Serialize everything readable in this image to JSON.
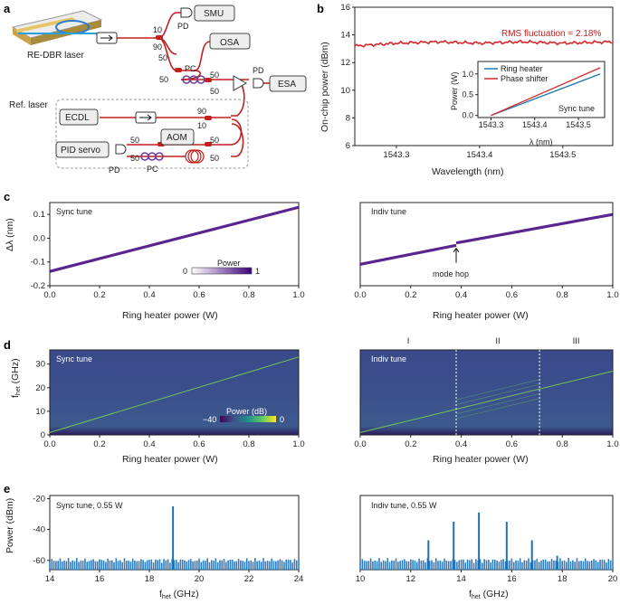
{
  "panel_labels": {
    "a": "a",
    "b": "b",
    "c": "c",
    "d": "d",
    "e": "e"
  },
  "schematic": {
    "laser": "RE-DBR laser",
    "smu": "SMU",
    "osa": "OSA",
    "esa": "ESA",
    "pd_top": "PD",
    "pd_right": "PD",
    "pd_bottom": "PD",
    "pc_mid": "PC",
    "pc_bottom": "PC",
    "ref_laser": "Ref. laser",
    "ecdl": "ECDL",
    "pid": "PID servo",
    "aom": "AOM",
    "c10a": "10",
    "c90a": "90",
    "c50a": "50",
    "c50b": "50",
    "c50c": "50",
    "c50d": "50",
    "c90b": "90",
    "c10b": "10",
    "c50e": "50",
    "c50f": "50",
    "c50g": "50",
    "c50h": "50"
  },
  "chart_data": [
    {
      "id": "b",
      "type": "line",
      "xlabel": "Wavelength (nm)",
      "ylabel": "On-chip power (dBm)",
      "xlim": [
        1543.25,
        1543.56
      ],
      "ylim": [
        6,
        16
      ],
      "xticks": [
        "1543.3",
        "1543.4",
        "1543.5"
      ],
      "yticks": [
        "6",
        "8",
        "10",
        "12",
        "14",
        "16"
      ],
      "annotation": "RMS fluctuation = 2.18%",
      "series": [
        {
          "color": "#d62728",
          "x": [
            1543.25,
            1543.3,
            1543.35,
            1543.4,
            1543.45,
            1543.5,
            1543.56
          ],
          "y": [
            13.2,
            13.4,
            13.5,
            13.4,
            13.5,
            13.4,
            13.5
          ]
        }
      ],
      "inset": {
        "ylabel": "Power (W)",
        "xlabel": "λ (nm)",
        "xticks": [
          "1543.3",
          "1543.4",
          "1543.5"
        ],
        "yticks": [
          "0.0",
          "0.5",
          "1.0"
        ],
        "xlim": [
          1543.27,
          1543.56
        ],
        "ylim": [
          -0.05,
          1.3
        ],
        "legend": [
          "Ring heater",
          "Phase shifter"
        ],
        "note": "Sync tune",
        "series": [
          {
            "name": "Ring heater",
            "color": "#1f77b4",
            "x": [
              1543.3,
              1543.55
            ],
            "y": [
              0.0,
              1.0
            ]
          },
          {
            "name": "Phase shifter",
            "color": "#d62728",
            "x": [
              1543.3,
              1543.55
            ],
            "y": [
              0.0,
              1.15
            ]
          }
        ]
      }
    },
    {
      "id": "c-left",
      "type": "heatmap",
      "title": "Sync tune",
      "xlabel": "Ring heater power (W)",
      "ylabel": "Δλ (nm)",
      "xlim": [
        0,
        1
      ],
      "ylim": [
        -0.2,
        0.15
      ],
      "xticks": [
        "0.0",
        "0.2",
        "0.4",
        "0.6",
        "0.8",
        "1.0"
      ],
      "yticks": [
        "0.1",
        "0.0",
        "-0.1",
        "-0.2"
      ],
      "colorbar": {
        "label": "Power",
        "min": "0",
        "max": "1"
      },
      "line": {
        "x": [
          0,
          1
        ],
        "y": [
          -0.14,
          0.13
        ]
      }
    },
    {
      "id": "c-right",
      "type": "heatmap",
      "title": "Indiv tune",
      "xlabel": "Ring heater power (W)",
      "xlim": [
        0,
        1
      ],
      "ylim": [
        -0.2,
        0.15
      ],
      "xticks": [
        "0.0",
        "0.2",
        "0.4",
        "0.6",
        "0.8",
        "1.0"
      ],
      "annotation": "mode hop",
      "segments": [
        {
          "x": [
            0,
            0.38
          ],
          "y": [
            -0.11,
            -0.03
          ]
        },
        {
          "x": [
            0.38,
            1
          ],
          "y": [
            -0.02,
            0.1
          ]
        }
      ]
    },
    {
      "id": "d-left",
      "type": "heatmap",
      "title": "Sync tune",
      "xlabel": "Ring heater power (W)",
      "ylabel": "f_het (GHz)",
      "xlim": [
        0,
        1
      ],
      "ylim": [
        0,
        36
      ],
      "xticks": [
        "0.0",
        "0.2",
        "0.4",
        "0.6",
        "0.8",
        "1.0"
      ],
      "yticks": [
        "30",
        "20",
        "10",
        "0"
      ],
      "colorbar": {
        "label": "Power (dB)",
        "min": "−40",
        "max": "0"
      },
      "line": {
        "x": [
          0,
          1
        ],
        "y": [
          1,
          33
        ]
      }
    },
    {
      "id": "d-right",
      "type": "heatmap",
      "title": "Indiv tune",
      "xlabel": "Ring heater power (W)",
      "xlim": [
        0,
        1
      ],
      "ylim": [
        0,
        36
      ],
      "xticks": [
        "0.0",
        "0.2",
        "0.4",
        "0.6",
        "0.8",
        "1.0"
      ],
      "regions": [
        "I",
        "II",
        "III"
      ],
      "boundaries": [
        0.38,
        0.71
      ],
      "line": {
        "x": [
          0,
          1
        ],
        "y": [
          1,
          27
        ]
      }
    },
    {
      "id": "e-left",
      "type": "bar",
      "title": "Sync tune, 0.55 W",
      "xlabel": "f_het (GHz)",
      "ylabel": "Power (dBm)",
      "xlim": [
        14,
        24
      ],
      "ylim": [
        -66,
        -18
      ],
      "xticks": [
        "14",
        "16",
        "18",
        "20",
        "22",
        "24"
      ],
      "yticks": [
        "-20",
        "-40",
        "-60"
      ],
      "noise_floor": -60,
      "peaks": [
        {
          "x": 18.95,
          "y": -25
        }
      ]
    },
    {
      "id": "e-right",
      "type": "bar",
      "title": "Indiv tune, 0.55 W",
      "xlabel": "f_het (GHz)",
      "xlim": [
        10,
        20
      ],
      "ylim": [
        -66,
        -18
      ],
      "xticks": [
        "10",
        "12",
        "14",
        "16",
        "18",
        "20"
      ],
      "noise_floor": -60,
      "peaks": [
        {
          "x": 12.7,
          "y": -47
        },
        {
          "x": 13.7,
          "y": -35
        },
        {
          "x": 14.7,
          "y": -29
        },
        {
          "x": 15.8,
          "y": -35
        },
        {
          "x": 16.8,
          "y": -47
        },
        {
          "x": 17.8,
          "y": -57
        }
      ]
    }
  ]
}
